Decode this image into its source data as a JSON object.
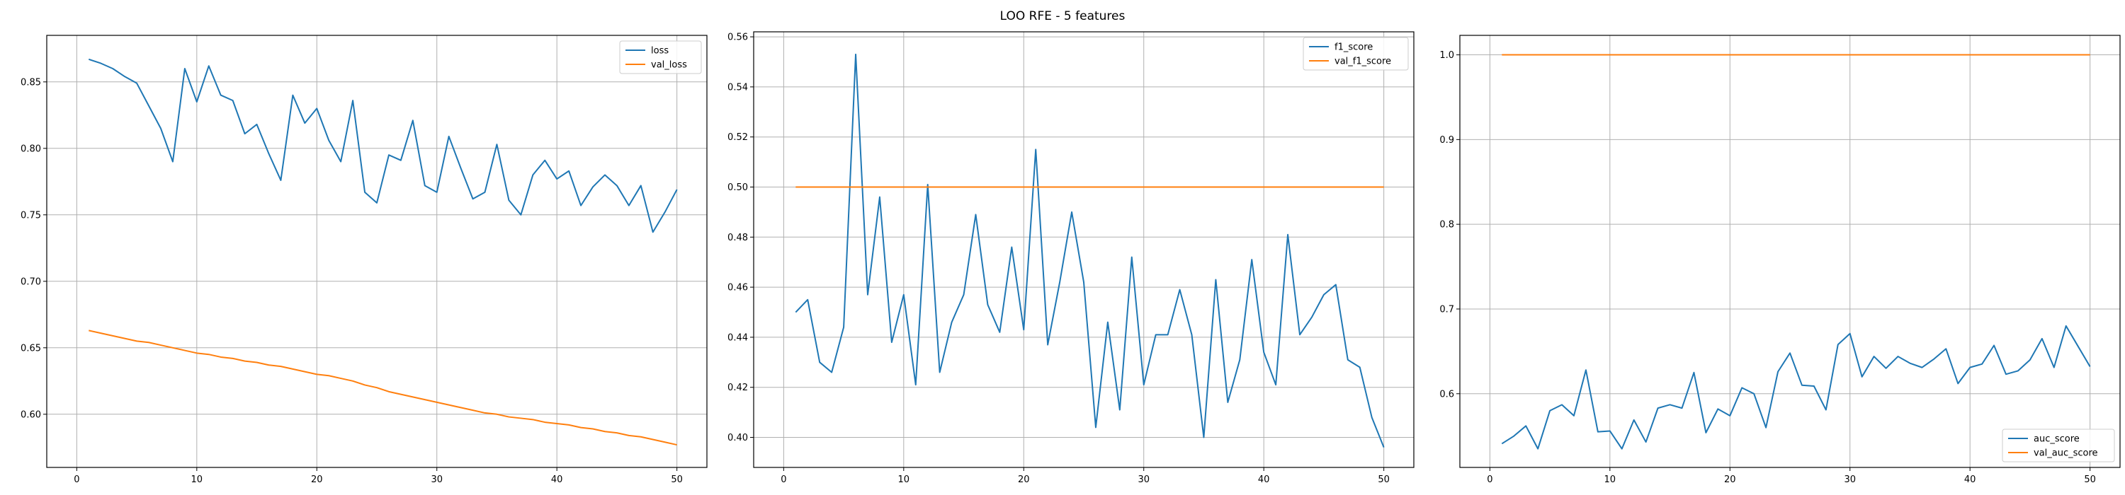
{
  "figure_title": "LOO RFE - 5 features",
  "colors": {
    "blue": "#1f77b4",
    "orange": "#ff7f0e",
    "grid": "#b0b0b0"
  },
  "chart_data": [
    {
      "type": "line",
      "title": "",
      "xlabel": "",
      "ylabel": "",
      "xlim": [
        -2.5,
        52.5
      ],
      "ylim": [
        0.56,
        0.885
      ],
      "xticks": [
        0,
        10,
        20,
        30,
        40,
        50
      ],
      "yticks": [
        0.6,
        0.65,
        0.7,
        0.75,
        0.8,
        0.85
      ],
      "ytick_labels": [
        "0.60",
        "0.65",
        "0.70",
        "0.75",
        "0.80",
        "0.85"
      ],
      "grid": true,
      "legend_position": "top-right",
      "x": [
        1,
        2,
        3,
        4,
        5,
        6,
        7,
        8,
        9,
        10,
        11,
        12,
        13,
        14,
        15,
        16,
        17,
        18,
        19,
        20,
        21,
        22,
        23,
        24,
        25,
        26,
        27,
        28,
        29,
        30,
        31,
        32,
        33,
        34,
        35,
        36,
        37,
        38,
        39,
        40,
        41,
        42,
        43,
        44,
        45,
        46,
        47,
        48,
        49,
        50
      ],
      "series": [
        {
          "name": "loss",
          "color": "#1f77b4",
          "values": [
            0.867,
            0.864,
            0.86,
            0.854,
            0.849,
            0.832,
            0.815,
            0.79,
            0.86,
            0.835,
            0.862,
            0.84,
            0.836,
            0.811,
            0.818,
            0.796,
            0.776,
            0.84,
            0.819,
            0.83,
            0.806,
            0.79,
            0.836,
            0.767,
            0.759,
            0.795,
            0.791,
            0.821,
            0.772,
            0.767,
            0.809,
            0.785,
            0.762,
            0.767,
            0.803,
            0.761,
            0.75,
            0.78,
            0.791,
            0.777,
            0.783,
            0.757,
            0.771,
            0.78,
            0.772,
            0.757,
            0.772,
            0.737,
            0.752,
            0.769
          ]
        },
        {
          "name": "val_loss",
          "color": "#ff7f0e",
          "values": [
            0.663,
            0.661,
            0.659,
            0.657,
            0.655,
            0.654,
            0.652,
            0.65,
            0.648,
            0.646,
            0.645,
            0.643,
            0.642,
            0.64,
            0.639,
            0.637,
            0.636,
            0.634,
            0.632,
            0.63,
            0.629,
            0.627,
            0.625,
            0.622,
            0.62,
            0.617,
            0.615,
            0.613,
            0.611,
            0.609,
            0.607,
            0.605,
            0.603,
            0.601,
            0.6,
            0.598,
            0.597,
            0.596,
            0.594,
            0.593,
            0.592,
            0.59,
            0.589,
            0.587,
            0.586,
            0.584,
            0.583,
            0.581,
            0.579,
            0.577
          ]
        }
      ]
    },
    {
      "type": "line",
      "title": "",
      "xlabel": "",
      "ylabel": "",
      "xlim": [
        -2.5,
        52.5
      ],
      "ylim": [
        0.388,
        0.562
      ],
      "xticks": [
        0,
        10,
        20,
        30,
        40,
        50
      ],
      "yticks": [
        0.4,
        0.42,
        0.44,
        0.46,
        0.48,
        0.5,
        0.52,
        0.54,
        0.56
      ],
      "ytick_labels": [
        "0.40",
        "0.42",
        "0.44",
        "0.46",
        "0.48",
        "0.50",
        "0.52",
        "0.54",
        "0.56"
      ],
      "grid": true,
      "legend_position": "top-right",
      "x": [
        1,
        2,
        3,
        4,
        5,
        6,
        7,
        8,
        9,
        10,
        11,
        12,
        13,
        14,
        15,
        16,
        17,
        18,
        19,
        20,
        21,
        22,
        23,
        24,
        25,
        26,
        27,
        28,
        29,
        30,
        31,
        32,
        33,
        34,
        35,
        36,
        37,
        38,
        39,
        40,
        41,
        42,
        43,
        44,
        45,
        46,
        47,
        48,
        49,
        50
      ],
      "series": [
        {
          "name": "f1_score",
          "color": "#1f77b4",
          "values": [
            0.45,
            0.455,
            0.43,
            0.426,
            0.444,
            0.553,
            0.457,
            0.496,
            0.438,
            0.457,
            0.421,
            0.501,
            0.426,
            0.446,
            0.457,
            0.489,
            0.453,
            0.442,
            0.476,
            0.443,
            0.515,
            0.437,
            0.462,
            0.49,
            0.462,
            0.404,
            0.446,
            0.411,
            0.472,
            0.421,
            0.441,
            0.441,
            0.459,
            0.441,
            0.4,
            0.463,
            0.414,
            0.431,
            0.471,
            0.434,
            0.421,
            0.481,
            0.441,
            0.448,
            0.457,
            0.461,
            0.431,
            0.428,
            0.408,
            0.396
          ]
        },
        {
          "name": "val_f1_score",
          "color": "#ff7f0e",
          "values": [
            0.5,
            0.5,
            0.5,
            0.5,
            0.5,
            0.5,
            0.5,
            0.5,
            0.5,
            0.5,
            0.5,
            0.5,
            0.5,
            0.5,
            0.5,
            0.5,
            0.5,
            0.5,
            0.5,
            0.5,
            0.5,
            0.5,
            0.5,
            0.5,
            0.5,
            0.5,
            0.5,
            0.5,
            0.5,
            0.5,
            0.5,
            0.5,
            0.5,
            0.5,
            0.5,
            0.5,
            0.5,
            0.5,
            0.5,
            0.5,
            0.5,
            0.5,
            0.5,
            0.5,
            0.5,
            0.5,
            0.5,
            0.5,
            0.5,
            0.5
          ]
        }
      ]
    },
    {
      "type": "line",
      "title": "",
      "xlabel": "",
      "ylabel": "",
      "xlim": [
        -2.5,
        52.5
      ],
      "ylim": [
        0.513,
        1.023
      ],
      "xticks": [
        0,
        10,
        20,
        30,
        40,
        50
      ],
      "yticks": [
        0.6,
        0.7,
        0.8,
        0.9,
        1.0
      ],
      "ytick_labels": [
        "0.6",
        "0.7",
        "0.8",
        "0.9",
        "1.0"
      ],
      "grid": true,
      "legend_position": "bottom-right",
      "x": [
        1,
        2,
        3,
        4,
        5,
        6,
        7,
        8,
        9,
        10,
        11,
        12,
        13,
        14,
        15,
        16,
        17,
        18,
        19,
        20,
        21,
        22,
        23,
        24,
        25,
        26,
        27,
        28,
        29,
        30,
        31,
        32,
        33,
        34,
        35,
        36,
        37,
        38,
        39,
        40,
        41,
        42,
        43,
        44,
        45,
        46,
        47,
        48,
        49,
        50
      ],
      "series": [
        {
          "name": "auc_score",
          "color": "#1f77b4",
          "values": [
            0.541,
            0.55,
            0.562,
            0.535,
            0.58,
            0.587,
            0.574,
            0.628,
            0.555,
            0.556,
            0.535,
            0.569,
            0.543,
            0.583,
            0.587,
            0.583,
            0.625,
            0.554,
            0.582,
            0.574,
            0.607,
            0.6,
            0.56,
            0.626,
            0.648,
            0.61,
            0.609,
            0.581,
            0.658,
            0.671,
            0.62,
            0.644,
            0.63,
            0.644,
            0.636,
            0.631,
            0.641,
            0.653,
            0.612,
            0.631,
            0.635,
            0.657,
            0.623,
            0.627,
            0.64,
            0.665,
            0.631,
            0.68,
            0.656,
            0.632
          ]
        },
        {
          "name": "val_auc_score",
          "color": "#ff7f0e",
          "values": [
            1.0,
            1.0,
            1.0,
            1.0,
            1.0,
            1.0,
            1.0,
            1.0,
            1.0,
            1.0,
            1.0,
            1.0,
            1.0,
            1.0,
            1.0,
            1.0,
            1.0,
            1.0,
            1.0,
            1.0,
            1.0,
            1.0,
            1.0,
            1.0,
            1.0,
            1.0,
            1.0,
            1.0,
            1.0,
            1.0,
            1.0,
            1.0,
            1.0,
            1.0,
            1.0,
            1.0,
            1.0,
            1.0,
            1.0,
            1.0,
            1.0,
            1.0,
            1.0,
            1.0,
            1.0,
            1.0,
            1.0,
            1.0,
            1.0,
            1.0
          ]
        }
      ]
    }
  ]
}
